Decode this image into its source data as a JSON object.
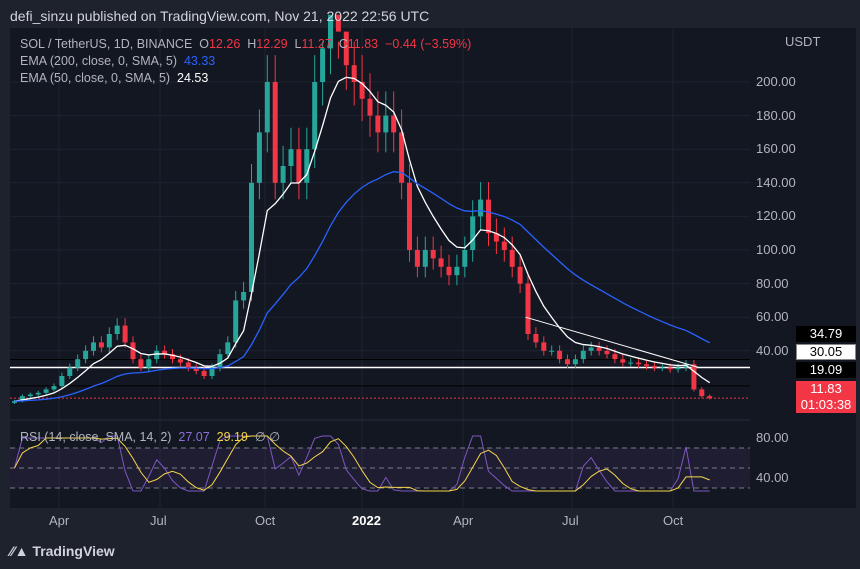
{
  "publisher": "defi_sinzu published on TradingView.com, Nov 21, 2022 22:56 UTC",
  "legend": {
    "symbol": "SOL / TetherUS, 1D, BINANCE",
    "o_label": "O",
    "o": "12.26",
    "h_label": "H",
    "h": "12.29",
    "l_label": "L",
    "l": "11.27",
    "c_label": "C",
    "c": "11.83",
    "change": "−0.44 (−3.59%)",
    "ema200": "EMA (200, close, 0, SMA, 5)",
    "ema200_val": "43.33",
    "ema50": "EMA (50, close, 0, SMA, 5)",
    "ema50_val": "24.53",
    "rsi": "RSI (14, close, SMA, 14, 2)",
    "rsi_val": "27.07",
    "rsi_ma": "29.19",
    "na1": "∅",
    "na2": "∅"
  },
  "currency": "USDT",
  "price_tags": {
    "l1": "34.79",
    "l2": "30.05",
    "l3": "19.09",
    "last": "11.83",
    "countdown": "01:03:38"
  },
  "brand": "TradingView",
  "colors": {
    "up": "#26a69a",
    "down": "#f23645",
    "ema200": "#2962ff",
    "ema50": "#ffffff",
    "rsi": "#7e57c2",
    "rsi_ma": "#f7d54b"
  },
  "chart_data": {
    "type": "candlestick",
    "title": "SOL / TetherUS, 1D, BINANCE",
    "ylabel": "USDT",
    "yticks": [
      200,
      180,
      160,
      140,
      120,
      100,
      80,
      60,
      40
    ],
    "ylim": [
      8,
      225
    ],
    "xticks": [
      "Apr",
      "Jul",
      "Oct",
      "2022",
      "Apr",
      "Jul",
      "Oct"
    ],
    "interval": "weekly approximation from Feb 2021 to Nov 2022",
    "closes": [
      10,
      13,
      14,
      15,
      17,
      19,
      25,
      30,
      35,
      40,
      45,
      42,
      50,
      55,
      45,
      35,
      30,
      35,
      40,
      38,
      35,
      33,
      30,
      28,
      25,
      30,
      38,
      45,
      70,
      75,
      140,
      170,
      200,
      140,
      150,
      160,
      140,
      160,
      200,
      220,
      240,
      230,
      210,
      200,
      190,
      180,
      170,
      180,
      170,
      140,
      100,
      90,
      100,
      95,
      90,
      85,
      90,
      100,
      120,
      130,
      110,
      105,
      100,
      90,
      80,
      50,
      45,
      40,
      40,
      35,
      32,
      35,
      40,
      42,
      40,
      38,
      35,
      33,
      33,
      32,
      31,
      30,
      30,
      29,
      30,
      32,
      17,
      13,
      11.83
    ],
    "hlines": [
      34.79,
      30.05,
      19.09,
      11.83
    ],
    "trendline": [
      [
        65,
        60
      ],
      [
        87,
        30
      ]
    ],
    "rsi_ticks": [
      80,
      40
    ],
    "rsi_bands": [
      70,
      50,
      30
    ]
  }
}
